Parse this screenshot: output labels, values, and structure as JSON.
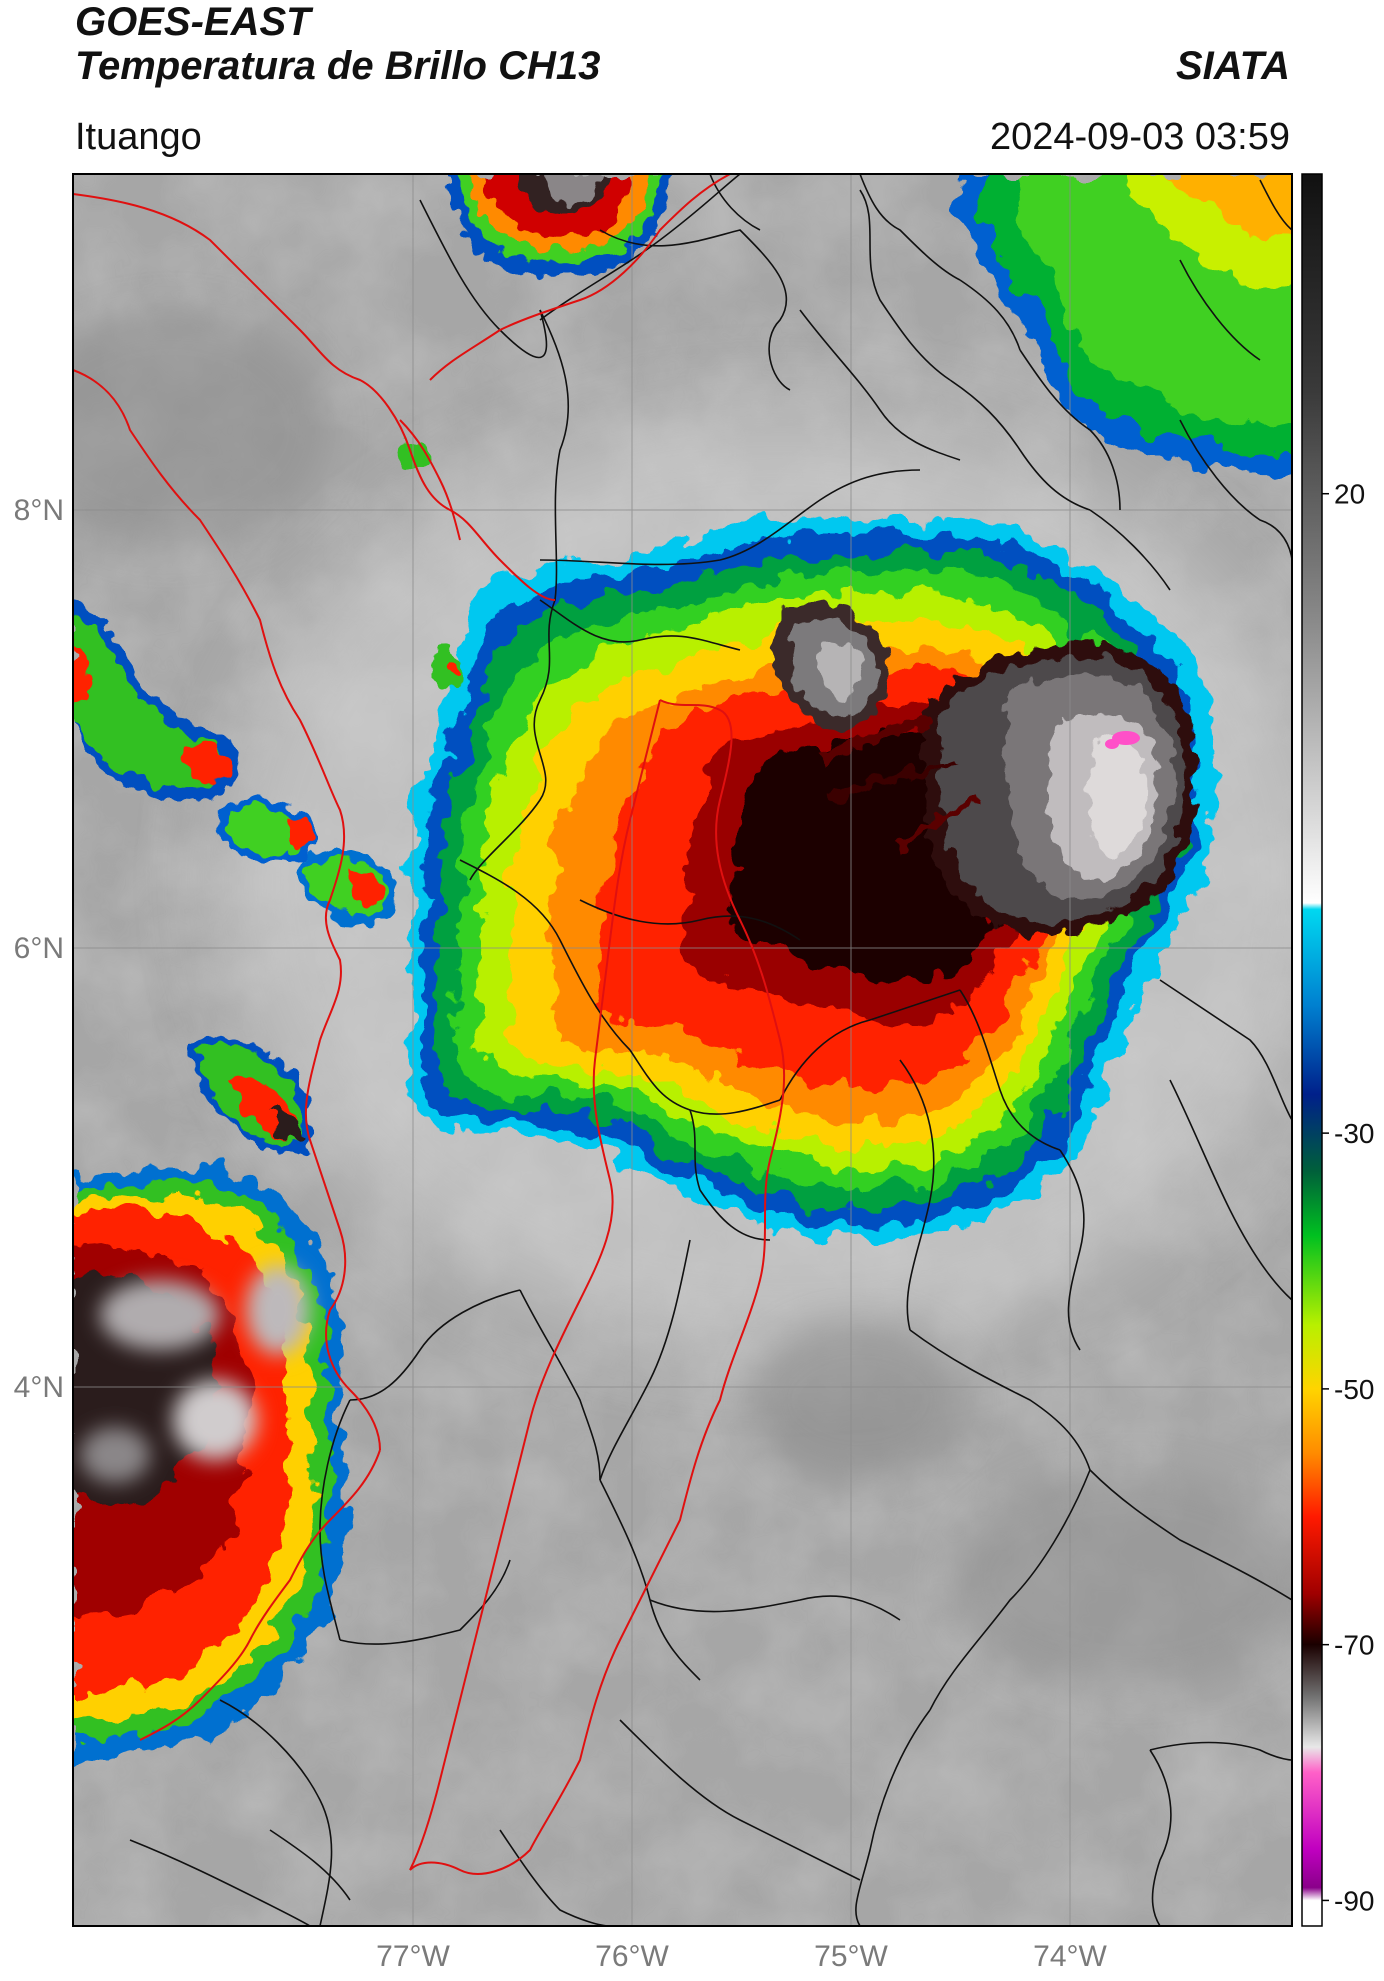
{
  "header": {
    "satellite": "GOES-EAST",
    "product": "Temperatura de Brillo CH13",
    "organization": "SIATA",
    "location": "Ituango",
    "datetime": "2024-09-03 03:59"
  },
  "map": {
    "lat_labels": [
      "8°N",
      "6°N",
      "4°N"
    ],
    "lon_labels": [
      "77°W",
      "76°W",
      "75°W",
      "74°W"
    ],
    "extent_lon": [
      -78.55,
      -72.95
    ],
    "extent_lat": [
      1.62,
      9.55
    ],
    "lat_ticks": [
      8,
      6,
      4
    ],
    "lon_ticks": [
      -77,
      -76,
      -75,
      -74
    ],
    "colors": {
      "background_gray": "#a9a9a9",
      "grid": "#8a8a8a",
      "border_red": "#e01010",
      "border_black": "#111111"
    }
  },
  "colorbar": {
    "tick_labels": [
      "20",
      "-30",
      "-50",
      "-70",
      "-90"
    ],
    "tick_values": [
      20,
      -30,
      -50,
      -70,
      -90
    ],
    "range": [
      45,
      -92
    ],
    "unit_hint": "°C",
    "stops": [
      {
        "v": 45,
        "c": "#111111"
      },
      {
        "v": 28,
        "c": "#3a3a3a"
      },
      {
        "v": 10,
        "c": "#8a8a8a"
      },
      {
        "v": -5,
        "c": "#d8d8d8"
      },
      {
        "v": -12,
        "c": "#ffffff"
      },
      {
        "v": -12.5,
        "c": "#00d8f0"
      },
      {
        "v": -20,
        "c": "#0080d0"
      },
      {
        "v": -27,
        "c": "#00208a"
      },
      {
        "v": -33,
        "c": "#00603a"
      },
      {
        "v": -38,
        "c": "#00c020"
      },
      {
        "v": -45,
        "c": "#b8f000"
      },
      {
        "v": -50,
        "c": "#ffd400"
      },
      {
        "v": -55,
        "c": "#ff8c00"
      },
      {
        "v": -60,
        "c": "#ff1a00"
      },
      {
        "v": -66,
        "c": "#a00000"
      },
      {
        "v": -70,
        "c": "#1a0000"
      },
      {
        "v": -74,
        "c": "#707070"
      },
      {
        "v": -78,
        "c": "#e8e8e8"
      },
      {
        "v": -80,
        "c": "#ff60c8"
      },
      {
        "v": -86,
        "c": "#c000c0"
      },
      {
        "v": -89,
        "c": "#8a008a"
      },
      {
        "v": -90,
        "c": "#ffffff"
      },
      {
        "v": -92,
        "c": "#ffffff"
      }
    ]
  }
}
